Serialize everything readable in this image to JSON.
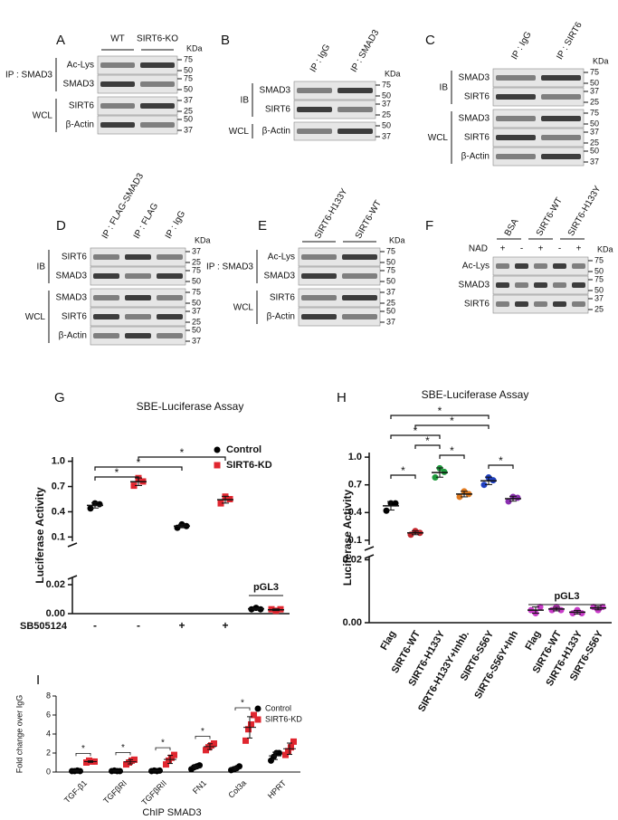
{
  "blots": [
    {
      "letter": "A",
      "lanes": [
        "WT",
        "SIRT6-KO"
      ],
      "kda": "KDa",
      "groups": [
        {
          "label": "IP : SMAD3",
          "rows": [
            {
              "label": "Ac-Lys",
              "mw": [
                "75",
                "50"
              ]
            },
            {
              "label": "SMAD3",
              "mw": [
                "75",
                "50"
              ]
            }
          ]
        },
        {
          "label": "WCL",
          "rows": [
            {
              "label": "SIRT6",
              "mw": [
                "37",
                "25"
              ]
            },
            {
              "label": "β-Actin",
              "mw": [
                "50",
                "37"
              ]
            }
          ]
        }
      ]
    },
    {
      "letter": "B",
      "lanes": [
        "IP : IgG",
        "IP : SMAD3"
      ],
      "kda": "KDa",
      "groups": [
        {
          "label": "IB",
          "rows": [
            {
              "label": "SMAD3",
              "mw": [
                "75",
                "50"
              ]
            },
            {
              "label": "SIRT6",
              "mw": [
                "37",
                "25"
              ]
            }
          ]
        },
        {
          "label": "WCL",
          "rows": [
            {
              "label": "β-Actin",
              "mw": [
                "50",
                "37"
              ]
            }
          ]
        }
      ]
    },
    {
      "letter": "C",
      "lanes": [
        "IP : IgG",
        "IP : SIRT6"
      ],
      "kda": "KDa",
      "groups": [
        {
          "label": "IB",
          "rows": [
            {
              "label": "SMAD3",
              "mw": [
                "75",
                "50"
              ]
            },
            {
              "label": "SIRT6",
              "mw": [
                "37",
                "25"
              ]
            }
          ]
        },
        {
          "label": "WCL",
          "rows": [
            {
              "label": "SMAD3",
              "mw": [
                "75",
                "50"
              ]
            },
            {
              "label": "SIRT6",
              "mw": [
                "37",
                "25"
              ]
            },
            {
              "label": "β-Actin",
              "mw": [
                "50",
                "37"
              ]
            }
          ]
        }
      ]
    },
    {
      "letter": "D",
      "lanes": [
        "IP : FLAG-SMAD3",
        "IP : FLAG",
        "IP : IgG"
      ],
      "kda": "KDa",
      "groups": [
        {
          "label": "IB",
          "rows": [
            {
              "label": "SIRT6",
              "mw": [
                "37",
                "25"
              ]
            },
            {
              "label": "SMAD3",
              "mw": [
                "75",
                "50"
              ]
            }
          ]
        },
        {
          "label": "WCL",
          "rows": [
            {
              "label": "SMAD3",
              "mw": [
                "75",
                "50"
              ]
            },
            {
              "label": "SIRT6",
              "mw": [
                "37",
                "25"
              ]
            },
            {
              "label": "β-Actin",
              "mw": [
                "50",
                "37"
              ]
            }
          ]
        }
      ]
    },
    {
      "letter": "E",
      "lanes": [
        "SIRT6-H133Y",
        "SIRT6-WT"
      ],
      "kda": "KDa",
      "groups": [
        {
          "label": "IP : SMAD3",
          "rows": [
            {
              "label": "Ac-Lys",
              "mw": [
                "75",
                "50"
              ]
            },
            {
              "label": "SMAD3",
              "mw": [
                "75",
                "50"
              ]
            }
          ]
        },
        {
          "label": "WCL",
          "rows": [
            {
              "label": "SIRT6",
              "mw": [
                "37",
                "25"
              ]
            },
            {
              "label": "β-Actin",
              "mw": [
                "50",
                "37"
              ]
            }
          ]
        }
      ]
    },
    {
      "letter": "F",
      "lanes": [
        "BSA",
        "SIRT6-WT",
        "SIRT6-H133Y"
      ],
      "kda": "KDa",
      "nad": {
        "label": "NAD",
        "signs": [
          "+",
          "-",
          "+",
          "-",
          "+"
        ]
      },
      "groups": [
        {
          "rows": [
            {
              "label": "Ac-Lys",
              "mw": [
                "75",
                "50"
              ]
            },
            {
              "label": "SMAD3",
              "mw": [
                "75",
                "50"
              ]
            },
            {
              "label": "SIRT6",
              "mw": [
                "37",
                "25"
              ]
            }
          ]
        }
      ]
    }
  ],
  "chart_data": [
    {
      "type": "dot_plot",
      "letter": "G",
      "title": "SBE-Luciferase Assay",
      "y_label": "Luciferase Activity",
      "series": [
        {
          "name": "Control",
          "color": "#000000",
          "marker": "circle"
        },
        {
          "name": "SIRT6-KD",
          "color": "#e0262f",
          "marker": "square"
        }
      ],
      "ylim": [
        0.05,
        1.05
      ],
      "yticks": [
        0.1,
        0.4,
        0.7,
        {
          "value": 1,
          "label": "1.0"
        }
      ],
      "lower_ylim": [
        0,
        0.025
      ],
      "lower_yticks": [
        {
          "value": 0,
          "label": "0.00"
        },
        {
          "value": 0.02,
          "label": "0.02"
        }
      ],
      "groups": [
        {
          "series": 0,
          "values": [
            0.44,
            0.5,
            0.49
          ]
        },
        {
          "series": 1,
          "values": [
            0.71,
            0.8,
            0.76
          ]
        },
        {
          "series": 0,
          "values": [
            0.21,
            0.25,
            0.23
          ]
        },
        {
          "series": 1,
          "values": [
            0.5,
            0.58,
            0.55
          ]
        }
      ],
      "pgl3_label": "pGL3",
      "pgl3_groups": [
        {
          "series": 0,
          "values": [
            0.003,
            0.004,
            0.003
          ]
        },
        {
          "series": 1,
          "values": [
            0.003,
            0.002,
            0.003
          ]
        }
      ],
      "x_row_label": "SB505124",
      "signs": [
        "-",
        "-",
        "+",
        "+"
      ],
      "significance": [
        {
          "pair": [
            0,
            1
          ],
          "label": "*"
        },
        {
          "pair": [
            0,
            2
          ],
          "label": "*"
        },
        {
          "pair": [
            1,
            3
          ],
          "label": "*"
        }
      ]
    },
    {
      "type": "dot_plot",
      "letter": "H",
      "title": "SBE-Luciferase Assay",
      "y_label": "Luciferase Activity",
      "ylim": [
        0.05,
        1.05
      ],
      "yticks": [
        0.1,
        0.4,
        0.7,
        {
          "value": 1,
          "label": "1.0"
        }
      ],
      "lower_ylim": [
        0,
        0.021
      ],
      "lower_yticks": [
        {
          "value": 0,
          "label": "0.00"
        },
        {
          "value": 0.02,
          "label": "0.02"
        }
      ],
      "categories": [
        "Flag",
        "SIRT6-WT",
        "SIRT6-H133Y",
        "SIRT6-H133Y+Inhb.",
        "SIRT6-S56Y",
        "SIRT6-S56Y+Inh",
        "Flag",
        "SIRT6-WT",
        "SIRT6-H133Y",
        "SIRT6-S56Y"
      ],
      "groups": [
        {
          "color": "#000000",
          "values": [
            0.42,
            0.5,
            0.5
          ]
        },
        {
          "color": "#c0262c",
          "values": [
            0.16,
            0.2,
            0.18
          ]
        },
        {
          "color": "#1e9a3c",
          "values": [
            0.78,
            0.88,
            0.84
          ]
        },
        {
          "color": "#e07a1f",
          "values": [
            0.57,
            0.63,
            0.6
          ]
        },
        {
          "color": "#1f3fbf",
          "values": [
            0.7,
            0.78,
            0.75
          ]
        },
        {
          "color": "#8a2fb0",
          "values": [
            0.52,
            0.57,
            0.56
          ]
        }
      ],
      "pgl3_label": "pGL3",
      "pgl3_groups": [
        {
          "color": "#c93cc9",
          "values": [
            0.004,
            0.003,
            0.005
          ]
        },
        {
          "color": "#c93cc9",
          "values": [
            0.004,
            0.005,
            0.004
          ]
        },
        {
          "color": "#c93cc9",
          "values": [
            0.003,
            0.004,
            0.003
          ]
        },
        {
          "color": "#c93cc9",
          "values": [
            0.005,
            0.004,
            0.005
          ]
        }
      ],
      "significance": [
        {
          "pair": [
            0,
            1
          ],
          "label": "*"
        },
        {
          "pair": [
            4,
            5
          ],
          "label": "*"
        },
        {
          "pair": [
            2,
            3
          ],
          "label": "*"
        },
        {
          "pair": [
            1,
            2
          ],
          "label": "*"
        },
        {
          "pair": [
            0,
            2
          ],
          "label": "*"
        },
        {
          "pair": [
            1,
            4
          ],
          "label": "*"
        },
        {
          "pair": [
            0,
            4
          ],
          "label": "*"
        }
      ]
    },
    {
      "type": "grouped_dot",
      "letter": "I",
      "y_label": "Fold change over IgG",
      "x_label": "ChIP SMAD3",
      "categories": [
        "TGF-β1",
        "TGFβRI",
        "TGFβRII",
        "FN1",
        "Col3a",
        "HPRT"
      ],
      "ylim": [
        0,
        8
      ],
      "yticks": [
        0,
        2,
        4,
        6,
        8
      ],
      "series": [
        {
          "name": "Control",
          "color": "#000000",
          "marker": "circle",
          "values": [
            [
              0.1,
              0.1,
              0.15,
              0.1
            ],
            [
              0.1,
              0.15,
              0.1,
              0.1
            ],
            [
              0.1,
              0.15,
              0.1,
              0.15
            ],
            [
              0.3,
              0.5,
              0.6,
              0.7
            ],
            [
              0.2,
              0.3,
              0.4,
              0.6
            ],
            [
              1.2,
              1.6,
              2.0,
              2.0
            ]
          ]
        },
        {
          "name": "SIRT6-KD",
          "color": "#e0262f",
          "marker": "square",
          "values": [
            [
              1.0,
              1.2,
              1.1,
              1.1
            ],
            [
              0.8,
              1.0,
              1.2,
              1.3
            ],
            [
              0.8,
              1.2,
              1.5,
              1.8
            ],
            [
              2.3,
              2.6,
              2.8,
              3.0
            ],
            [
              3.3,
              4.5,
              5.0,
              6.0
            ],
            [
              1.8,
              2.2,
              2.6,
              3.2
            ]
          ]
        }
      ],
      "significance": [
        {
          "category": 0,
          "label": "*"
        },
        {
          "category": 1,
          "label": "*"
        },
        {
          "category": 2,
          "label": "*"
        },
        {
          "category": 3,
          "label": "*"
        },
        {
          "category": 4,
          "label": "*"
        }
      ]
    }
  ]
}
